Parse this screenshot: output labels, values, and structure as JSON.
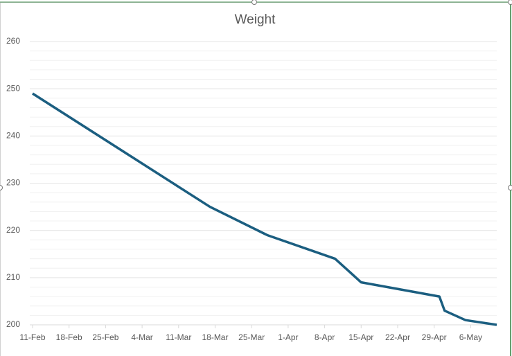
{
  "chart_data": {
    "type": "line",
    "title": "Weight",
    "x": [
      "11-Feb",
      "17-Mar",
      "28-Mar",
      "10-Apr",
      "15-Apr",
      "30-Apr",
      "1-May",
      "5-May",
      "11-May"
    ],
    "series": [
      {
        "name": "Weight",
        "color": "#1b5e80",
        "values": [
          249,
          225,
          219,
          214,
          209,
          206,
          203,
          201,
          200
        ]
      }
    ],
    "xlim": [
      "11-Feb",
      "11-May"
    ],
    "xticks": [
      "11-Feb",
      "18-Feb",
      "25-Feb",
      "4-Mar",
      "11-Mar",
      "18-Mar",
      "25-Mar",
      "1-Apr",
      "8-Apr",
      "15-Apr",
      "22-Apr",
      "29-Apr",
      "6-May"
    ],
    "ylim": [
      200,
      260
    ],
    "yticks": [
      200,
      210,
      220,
      230,
      240,
      250,
      260
    ],
    "minor_step": 2,
    "grid": true
  }
}
